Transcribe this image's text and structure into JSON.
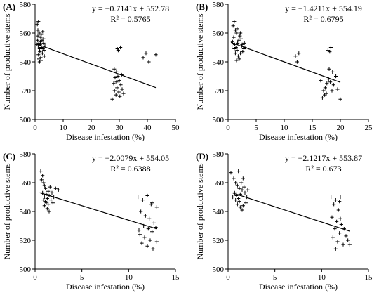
{
  "chart_data": [
    {
      "type": "scatter",
      "panel_label": "(A)",
      "xlabel": "Disease infestation (%)",
      "ylabel": "Number of productive stems",
      "xlim": [
        0,
        50
      ],
      "ylim": [
        500,
        580
      ],
      "xticks": [
        0,
        10,
        20,
        30,
        40,
        50
      ],
      "yticks": [
        500,
        520,
        540,
        560,
        580
      ],
      "grid": false,
      "equation": "y = −0.7141x + 552.78",
      "r2_label": "R² = 0.5765",
      "trendline": {
        "slope": -0.7141,
        "intercept": 552.78,
        "x_range": [
          0.5,
          43
        ]
      },
      "points": [
        [
          0.8,
          566
        ],
        [
          1.0,
          562
        ],
        [
          1.2,
          568
        ],
        [
          1.0,
          558
        ],
        [
          1.5,
          560
        ],
        [
          0.9,
          555
        ],
        [
          1.3,
          553
        ],
        [
          1.1,
          551
        ],
        [
          1.6,
          549
        ],
        [
          2.0,
          557
        ],
        [
          2.2,
          559
        ],
        [
          1.8,
          552
        ],
        [
          2.5,
          555
        ],
        [
          2.7,
          561
        ],
        [
          3.0,
          556
        ],
        [
          2.3,
          550
        ],
        [
          1.7,
          547
        ],
        [
          1.2,
          545
        ],
        [
          1.4,
          542
        ],
        [
          2.0,
          543
        ],
        [
          2.6,
          546
        ],
        [
          3.2,
          548
        ],
        [
          3.5,
          551
        ],
        [
          3.0,
          553
        ],
        [
          2.1,
          541
        ],
        [
          1.6,
          540
        ],
        [
          0.7,
          552
        ],
        [
          2.8,
          549
        ],
        [
          3.3,
          544
        ],
        [
          1.9,
          554
        ],
        [
          28.0,
          525
        ],
        [
          28.5,
          529
        ],
        [
          29.0,
          533
        ],
        [
          29.5,
          530
        ],
        [
          30.0,
          527
        ],
        [
          30.5,
          524
        ],
        [
          29.2,
          522
        ],
        [
          28.3,
          520
        ],
        [
          27.5,
          514
        ],
        [
          28.8,
          517
        ],
        [
          29.8,
          519
        ],
        [
          31.0,
          521
        ],
        [
          30.2,
          516
        ],
        [
          31.5,
          518
        ],
        [
          29.0,
          526
        ],
        [
          30.8,
          531
        ],
        [
          28.2,
          535
        ],
        [
          29.6,
          548
        ],
        [
          30.4,
          550
        ],
        [
          29.3,
          549
        ],
        [
          38.5,
          543
        ],
        [
          39.5,
          546
        ],
        [
          40.5,
          540
        ],
        [
          43.0,
          545
        ]
      ]
    },
    {
      "type": "scatter",
      "panel_label": "(B)",
      "xlabel": "Disease infestation (%)",
      "ylabel": "Number of productive stems",
      "xlim": [
        0,
        25
      ],
      "ylim": [
        500,
        580
      ],
      "xticks": [
        0,
        5,
        10,
        15,
        20,
        25
      ],
      "yticks": [
        500,
        520,
        540,
        560,
        580
      ],
      "grid": false,
      "equation": "y = −1.4211x + 554.19",
      "r2_label": "R² = 0.6795",
      "trendline": {
        "slope": -1.4211,
        "intercept": 554.19,
        "x_range": [
          0.5,
          20
        ]
      },
      "points": [
        [
          0.9,
          565
        ],
        [
          1.1,
          568
        ],
        [
          1.3,
          562
        ],
        [
          1.0,
          557
        ],
        [
          1.5,
          560
        ],
        [
          0.8,
          554
        ],
        [
          1.2,
          552
        ],
        [
          1.4,
          550
        ],
        [
          1.6,
          548
        ],
        [
          1.9,
          555
        ],
        [
          2.1,
          558
        ],
        [
          1.7,
          553
        ],
        [
          2.3,
          556
        ],
        [
          2.5,
          552
        ],
        [
          2.8,
          549
        ],
        [
          2.2,
          546
        ],
        [
          1.8,
          544
        ],
        [
          1.5,
          541
        ],
        [
          2.0,
          542
        ],
        [
          2.6,
          547
        ],
        [
          3.0,
          550
        ],
        [
          2.4,
          551
        ],
        [
          1.1,
          549
        ],
        [
          1.3,
          546
        ],
        [
          2.9,
          553
        ],
        [
          0.7,
          551
        ],
        [
          1.6,
          563
        ],
        [
          2.2,
          560
        ],
        [
          12.0,
          544
        ],
        [
          12.3,
          540
        ],
        [
          12.6,
          546
        ],
        [
          17.0,
          520
        ],
        [
          17.3,
          522
        ],
        [
          17.6,
          525
        ],
        [
          17.9,
          528
        ],
        [
          18.2,
          526
        ],
        [
          17.5,
          518
        ],
        [
          16.8,
          515
        ],
        [
          17.2,
          517
        ],
        [
          18.5,
          520
        ],
        [
          18.8,
          524
        ],
        [
          19.2,
          530
        ],
        [
          18.6,
          533
        ],
        [
          18.0,
          535
        ],
        [
          19.5,
          521
        ],
        [
          20.0,
          514
        ],
        [
          17.8,
          548
        ],
        [
          18.3,
          550
        ],
        [
          18.1,
          547
        ],
        [
          16.5,
          527
        ]
      ]
    },
    {
      "type": "scatter",
      "panel_label": "(C)",
      "xlabel": "Disease infestation (%)",
      "ylabel": "Number of productive stems",
      "xlim": [
        0,
        15
      ],
      "ylim": [
        500,
        580
      ],
      "xticks": [
        0,
        5,
        10,
        15
      ],
      "yticks": [
        500,
        520,
        540,
        560,
        580
      ],
      "grid": false,
      "equation": "y = −2.0079x + 554.05",
      "r2_label": "R² = 0.6388",
      "trendline": {
        "slope": -2.0079,
        "intercept": 554.05,
        "x_range": [
          0.5,
          13
        ]
      },
      "points": [
        [
          0.6,
          568
        ],
        [
          0.8,
          565
        ],
        [
          0.7,
          562
        ],
        [
          0.9,
          560
        ],
        [
          1.0,
          558
        ],
        [
          1.1,
          556
        ],
        [
          0.8,
          553
        ],
        [
          1.2,
          552
        ],
        [
          1.0,
          550
        ],
        [
          1.3,
          549
        ],
        [
          1.5,
          551
        ],
        [
          1.4,
          554
        ],
        [
          1.6,
          557
        ],
        [
          1.8,
          553
        ],
        [
          2.0,
          550
        ],
        [
          1.7,
          548
        ],
        [
          1.2,
          546
        ],
        [
          1.0,
          544
        ],
        [
          1.3,
          542
        ],
        [
          1.5,
          540
        ],
        [
          0.9,
          548
        ],
        [
          1.1,
          547
        ],
        [
          2.2,
          556
        ],
        [
          2.5,
          555
        ],
        [
          1.9,
          546
        ],
        [
          1.4,
          545
        ],
        [
          11.0,
          550
        ],
        [
          11.5,
          548
        ],
        [
          12.0,
          551
        ],
        [
          12.5,
          546
        ],
        [
          13.0,
          543
        ],
        [
          11.3,
          540
        ],
        [
          11.8,
          537
        ],
        [
          12.2,
          535
        ],
        [
          12.7,
          532
        ],
        [
          11.6,
          530
        ],
        [
          12.1,
          528
        ],
        [
          12.5,
          526
        ],
        [
          11.2,
          524
        ],
        [
          11.7,
          522
        ],
        [
          12.3,
          520
        ],
        [
          11.4,
          518
        ],
        [
          12.0,
          516
        ],
        [
          12.6,
          514
        ],
        [
          13.0,
          519
        ],
        [
          11.1,
          527
        ],
        [
          12.9,
          529
        ],
        [
          12.4,
          545
        ]
      ]
    },
    {
      "type": "scatter",
      "panel_label": "(D)",
      "xlabel": "Disease infestation (%)",
      "ylabel": "Number of productive stems",
      "xlim": [
        0,
        15
      ],
      "ylim": [
        500,
        580
      ],
      "xticks": [
        0,
        5,
        10,
        15
      ],
      "yticks": [
        500,
        520,
        540,
        560,
        580
      ],
      "grid": false,
      "equation": "y = −2.1217x + 553.87",
      "r2_label": "R² = 0.673",
      "trendline": {
        "slope": -2.1217,
        "intercept": 553.87,
        "x_range": [
          0.5,
          13
        ]
      },
      "points": [
        [
          0.3,
          567
        ],
        [
          1.1,
          568
        ],
        [
          0.6,
          563
        ],
        [
          0.8,
          560
        ],
        [
          1.0,
          558
        ],
        [
          1.2,
          556
        ],
        [
          0.7,
          553
        ],
        [
          0.9,
          551
        ],
        [
          1.1,
          549
        ],
        [
          1.3,
          552
        ],
        [
          1.5,
          555
        ],
        [
          1.7,
          557
        ],
        [
          1.4,
          560
        ],
        [
          1.6,
          563
        ],
        [
          1.8,
          553
        ],
        [
          2.0,
          550
        ],
        [
          1.2,
          547
        ],
        [
          1.0,
          545
        ],
        [
          1.3,
          543
        ],
        [
          1.5,
          541
        ],
        [
          0.8,
          548
        ],
        [
          1.9,
          546
        ],
        [
          2.1,
          555
        ],
        [
          0.5,
          550
        ],
        [
          1.6,
          544
        ],
        [
          11.0,
          550
        ],
        [
          11.5,
          548
        ],
        [
          12.0,
          550
        ],
        [
          11.3,
          545
        ],
        [
          11.8,
          541
        ],
        [
          11.1,
          536
        ],
        [
          11.6,
          533
        ],
        [
          12.1,
          531
        ],
        [
          11.4,
          528
        ],
        [
          11.9,
          525
        ],
        [
          12.4,
          528
        ],
        [
          11.2,
          522
        ],
        [
          11.7,
          519
        ],
        [
          12.3,
          517
        ],
        [
          11.5,
          514
        ],
        [
          12.8,
          520
        ],
        [
          13.0,
          517
        ],
        [
          12.6,
          523
        ],
        [
          12.0,
          535
        ],
        [
          11.9,
          547
        ]
      ]
    }
  ]
}
